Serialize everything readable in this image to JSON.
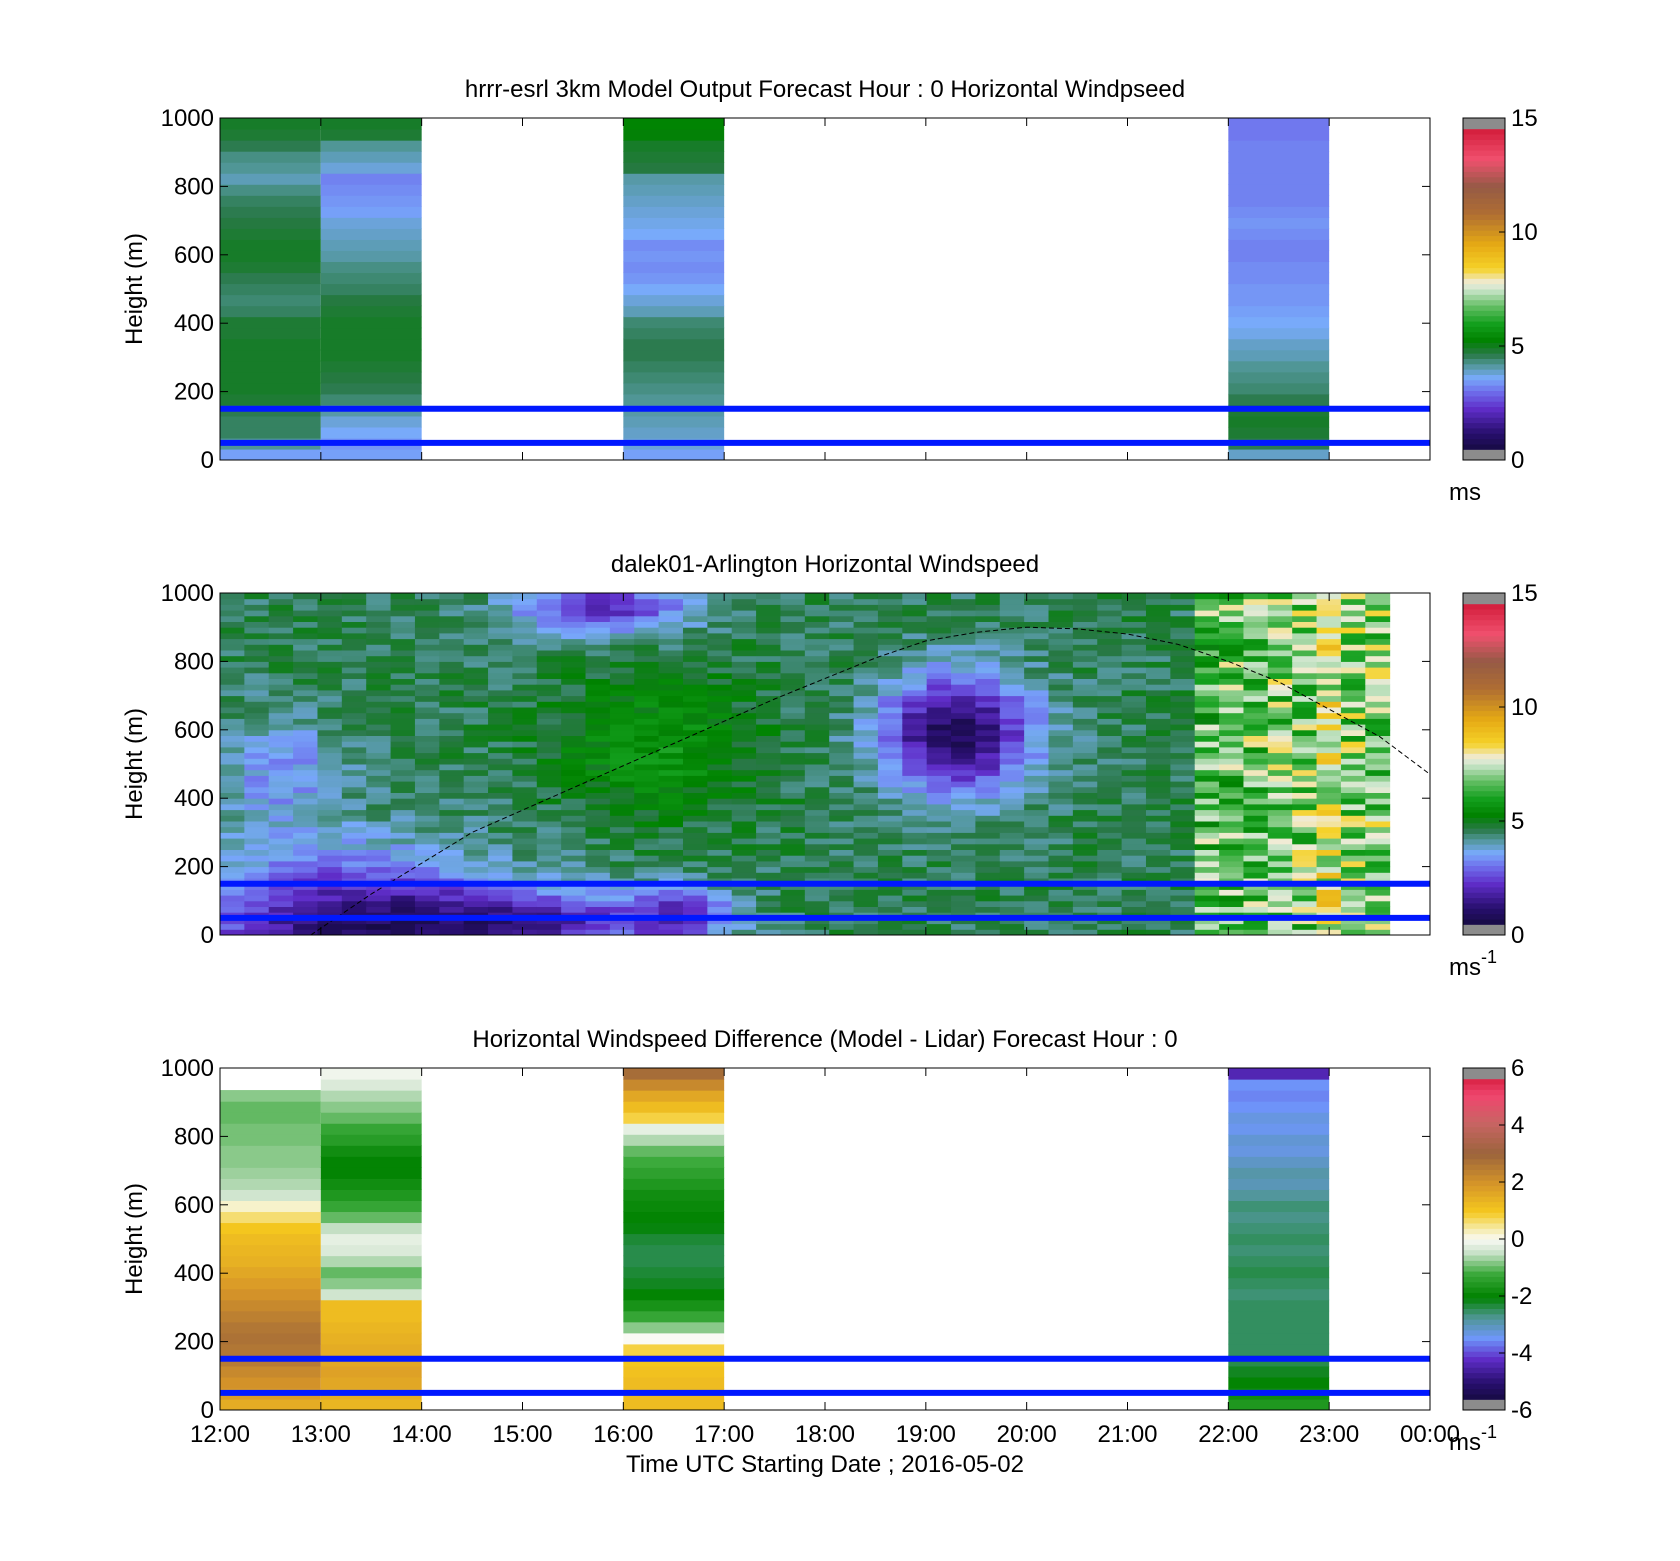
{
  "figure": {
    "xlabel": "Time UTC  Starting Date ; 2016-05-02",
    "x_ticks": [
      "12:00",
      "13:00",
      "14:00",
      "15:00",
      "16:00",
      "17:00",
      "18:00",
      "19:00",
      "20:00",
      "21:00",
      "22:00",
      "23:00",
      "00:00"
    ]
  },
  "chart_data": [
    {
      "type": "heatmap",
      "title": "hrrr-esrl 3km Model Output   Forecast Hour : 0 Horizontal Windpseed",
      "xlabel": "",
      "ylabel": "Height (m)",
      "x_range_hours": [
        12,
        24
      ],
      "ylim": [
        0,
        1000
      ],
      "y_ticks": [
        "0",
        "200",
        "400",
        "600",
        "800",
        "1000"
      ],
      "colorbar": {
        "min": 0,
        "max": 15,
        "ticks": [
          "0",
          "5",
          "10",
          "15"
        ],
        "unit_label": "ms",
        "unit_superscript": "",
        "palette": "speed"
      },
      "reference_lines_m": [
        50,
        150
      ],
      "columns": [
        {
          "start_hour": 12,
          "end_hour": 13,
          "values_bottom_to_top": [
            3.5,
            4.2,
            4.5,
            4.5,
            4.6,
            4.8,
            4.9,
            4.9,
            4.9,
            4.9,
            4.9,
            4.8,
            4.8,
            4.5,
            4.4,
            4.5,
            4.6,
            4.8,
            4.9,
            4.9,
            4.8,
            4.7,
            4.6,
            4.5,
            4.3,
            4.0,
            4.2,
            4.3,
            4.6,
            4.8,
            4.9
          ]
        },
        {
          "start_hour": 13,
          "end_hour": 14,
          "values_bottom_to_top": [
            3.5,
            3.4,
            3.6,
            3.8,
            4.1,
            4.4,
            4.6,
            4.7,
            4.8,
            4.9,
            4.9,
            4.9,
            4.9,
            4.8,
            4.7,
            4.5,
            4.4,
            4.3,
            4.1,
            4.0,
            3.9,
            3.8,
            3.5,
            3.4,
            3.3,
            3.2,
            3.8,
            4.0,
            4.2,
            4.8,
            4.9
          ]
        },
        {
          "start_hour": 16,
          "end_hour": 17,
          "values_bottom_to_top": [
            3.5,
            3.8,
            3.9,
            4.0,
            4.1,
            4.2,
            4.3,
            4.4,
            4.5,
            4.6,
            4.6,
            4.5,
            4.4,
            4.0,
            3.8,
            3.6,
            3.4,
            3.3,
            3.4,
            3.3,
            3.6,
            3.7,
            3.8,
            3.9,
            4.0,
            4.1,
            4.7,
            4.8,
            4.9,
            5.2,
            5.3
          ]
        },
        {
          "start_hour": 22,
          "end_hour": 23,
          "values_bottom_to_top": [
            3.9,
            4.6,
            4.8,
            4.9,
            4.8,
            4.6,
            4.4,
            4.3,
            4.2,
            4.0,
            3.9,
            3.7,
            3.6,
            3.5,
            3.4,
            3.4,
            3.3,
            3.3,
            3.2,
            3.2,
            3.3,
            3.4,
            3.3,
            3.2,
            3.2,
            3.2,
            3.2,
            3.2,
            3.2,
            3.1,
            3.1
          ]
        }
      ]
    },
    {
      "type": "heatmap",
      "title": "dalek01-Arlington  Horizontal Windspeed",
      "xlabel": "",
      "ylabel": "Height (m)",
      "x_range_hours": [
        12,
        24
      ],
      "ylim": [
        0,
        1000
      ],
      "y_ticks": [
        "0",
        "200",
        "400",
        "600",
        "800",
        "1000"
      ],
      "colorbar": {
        "min": 0,
        "max": 15,
        "ticks": [
          "0",
          "5",
          "10",
          "15"
        ],
        "unit_label": "ms",
        "unit_superscript": "-1",
        "palette": "speed"
      },
      "reference_lines_m": [
        50,
        150
      ],
      "continuous_field": true,
      "boundary_layer_curve": {
        "x_hours": [
          12.9,
          13.5,
          14.5,
          15.5,
          16.5,
          17.5,
          18.5,
          19.0,
          19.5,
          20.0,
          20.5,
          21.0,
          21.5,
          22.0,
          22.5,
          23.0,
          23.5,
          24.0
        ],
        "y_m": [
          0,
          120,
          300,
          430,
          560,
          690,
          810,
          860,
          885,
          900,
          895,
          880,
          850,
          800,
          740,
          660,
          580,
          470
        ]
      }
    },
    {
      "type": "heatmap",
      "title": "Horizontal Windspeed Difference (Model - Lidar) Forecast Hour : 0",
      "xlabel": "Time UTC  Starting Date ; 2016-05-02",
      "ylabel": "Height (m)",
      "x_range_hours": [
        12,
        24
      ],
      "ylim": [
        0,
        1000
      ],
      "y_ticks": [
        "0",
        "200",
        "400",
        "600",
        "800",
        "1000"
      ],
      "colorbar": {
        "min": -6,
        "max": 6,
        "ticks": [
          "-6",
          "-4",
          "-2",
          "0",
          "2",
          "4",
          "6"
        ],
        "unit_label": "ms",
        "unit_superscript": "-1",
        "palette": "diff"
      },
      "reference_lines_m": [
        50,
        150
      ],
      "columns": [
        {
          "start_hour": 12,
          "end_hour": 13,
          "values_bottom_to_top": [
            1.5,
            1.8,
            2.0,
            2.2,
            2.5,
            2.6,
            2.7,
            2.6,
            2.4,
            2.2,
            2.0,
            1.8,
            1.6,
            1.4,
            1.3,
            1.2,
            1.0,
            0.6,
            0.2,
            -0.4,
            -0.6,
            -0.7,
            -0.8,
            -0.8,
            -0.9,
            -0.9,
            -1.0,
            -1.0,
            -0.8,
            null,
            null
          ]
        },
        {
          "start_hour": 13,
          "end_hour": 14,
          "values_bottom_to_top": [
            1.3,
            1.5,
            1.6,
            1.7,
            1.6,
            1.5,
            1.4,
            1.3,
            1.2,
            1.2,
            -0.4,
            -0.8,
            -1.0,
            -0.6,
            -0.3,
            -0.2,
            -0.5,
            -1.0,
            -1.3,
            -1.6,
            -1.8,
            -2.0,
            -2.0,
            -1.8,
            -1.5,
            -1.3,
            -1.0,
            -0.8,
            -0.6,
            -0.3,
            -0.1
          ]
        },
        {
          "start_hour": 16,
          "end_hour": 17,
          "values_bottom_to_top": [
            1.2,
            1.2,
            1.2,
            1.1,
            1.0,
            0.8,
            0.0,
            -0.8,
            -1.3,
            -1.7,
            -2.0,
            -2.2,
            -2.3,
            -2.4,
            -2.4,
            -2.3,
            -2.1,
            -2.0,
            -1.9,
            -1.8,
            -1.6,
            -1.4,
            -1.2,
            -1.0,
            -0.6,
            -0.2,
            0.8,
            1.2,
            1.6,
            2.2,
            2.8
          ]
        },
        {
          "start_hour": 22,
          "end_hour": 23,
          "values_bottom_to_top": [
            -1.6,
            -1.8,
            -2.0,
            -2.2,
            -2.4,
            -2.5,
            -2.5,
            -2.5,
            -2.5,
            -2.5,
            -2.6,
            -2.5,
            -2.4,
            -2.5,
            -2.6,
            -2.5,
            -2.6,
            -2.7,
            -2.6,
            -2.8,
            -3.0,
            -2.9,
            -3.1,
            -3.3,
            -3.2,
            -3.4,
            -3.3,
            -3.5,
            -3.6,
            -3.5,
            -4.4
          ]
        }
      ]
    }
  ]
}
